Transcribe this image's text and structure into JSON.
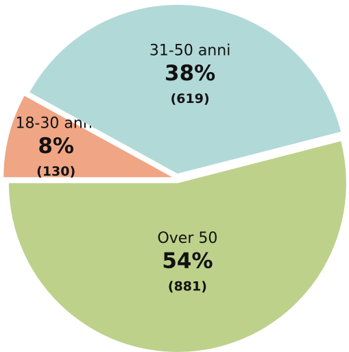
{
  "chart_data": {
    "type": "pie",
    "categories": [
      "18-30 anni",
      "31-50 anni",
      "Over 50"
    ],
    "values": [
      8,
      38,
      54
    ],
    "value_labels": [
      "8%",
      "38%",
      "54%"
    ],
    "counts": [
      130,
      619,
      881
    ],
    "count_labels": [
      "(130)",
      "(619)",
      "(881)"
    ],
    "colors": [
      "#f0a584",
      "#b1d9d8",
      "#bdd18b"
    ]
  }
}
